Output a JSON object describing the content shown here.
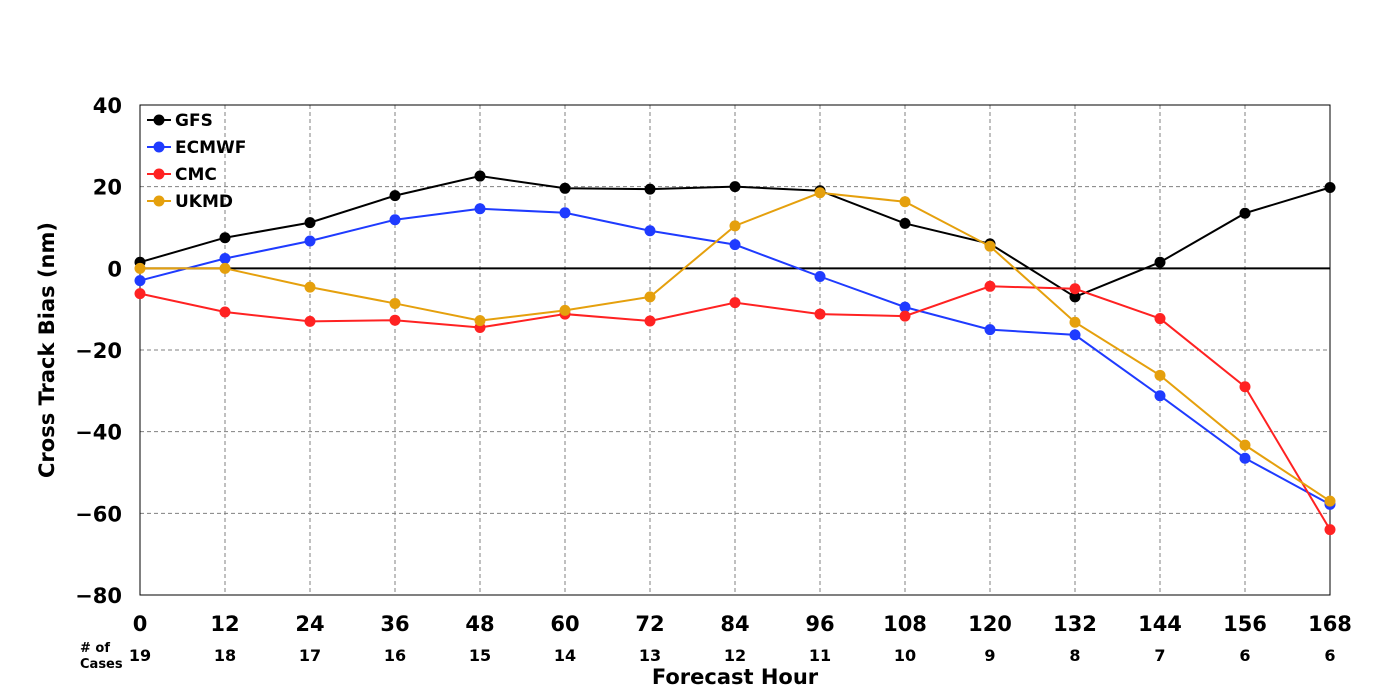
{
  "chart_data": {
    "type": "line",
    "xlabel": "Forecast Hour",
    "ylabel": "Cross Track Bias (nm)",
    "x": [
      0,
      12,
      24,
      36,
      48,
      60,
      72,
      84,
      96,
      108,
      120,
      132,
      144,
      156,
      168
    ],
    "xlim": [
      0,
      168
    ],
    "ylim": [
      -80,
      40
    ],
    "xticks": [
      "0",
      "12",
      "24",
      "36",
      "48",
      "60",
      "72",
      "84",
      "96",
      "108",
      "120",
      "132",
      "144",
      "156",
      "168"
    ],
    "yticks": [
      40,
      20,
      0,
      -20,
      -40,
      -60,
      -80
    ],
    "ytick_labels": [
      "40",
      "20",
      "0",
      "−20",
      "−40",
      "−60",
      "−80"
    ],
    "grid": true,
    "legend_position": "top-left",
    "cases_label": [
      "# of",
      "Cases"
    ],
    "cases": [
      "19",
      "18",
      "17",
      "16",
      "15",
      "14",
      "13",
      "12",
      "11",
      "10",
      "9",
      "8",
      "7",
      "6",
      "6"
    ],
    "series": [
      {
        "name": "GFS",
        "color": "#000000",
        "values": [
          1.5,
          7.5,
          11.2,
          17.8,
          22.6,
          19.6,
          19.4,
          20.0,
          19.0,
          11.0,
          6.0,
          -7.0,
          1.5,
          13.5,
          19.8
        ]
      },
      {
        "name": "ECMWF",
        "color": "#1f3bff",
        "values": [
          -3.0,
          2.4,
          6.7,
          11.9,
          14.6,
          13.6,
          9.2,
          5.8,
          -2.0,
          -9.5,
          -15.0,
          -16.3,
          -31.2,
          -46.5,
          -57.8
        ]
      },
      {
        "name": "CMC",
        "color": "#ff2222",
        "values": [
          -6.2,
          -10.7,
          -13.0,
          -12.7,
          -14.5,
          -11.2,
          -12.9,
          -8.4,
          -11.2,
          -11.7,
          -4.4,
          -5.0,
          -12.3,
          -29.0,
          -64.0
        ]
      },
      {
        "name": "UKMD",
        "color": "#e5a00d",
        "values": [
          0.0,
          0.0,
          -4.6,
          -8.6,
          -12.8,
          -10.3,
          -7.0,
          10.4,
          18.5,
          16.3,
          5.4,
          -13.2,
          -26.2,
          -43.3,
          -57.0
        ]
      }
    ]
  }
}
